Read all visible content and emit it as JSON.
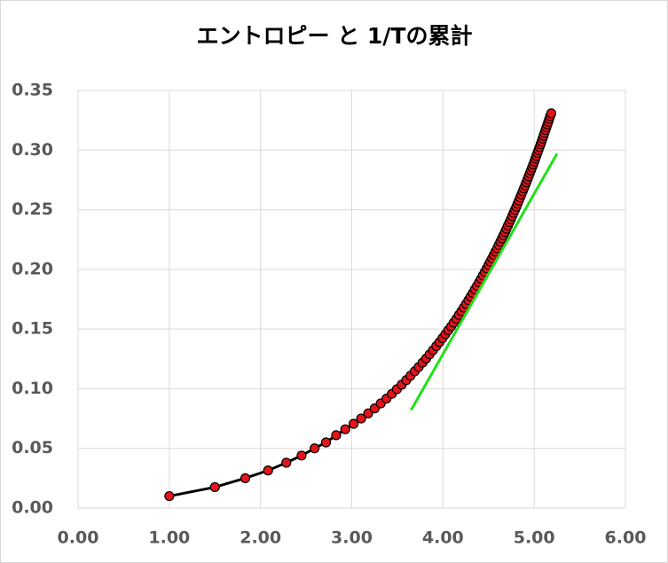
{
  "chart_data": {
    "type": "scatter",
    "title": "エントロピー と 1/Tの累計",
    "xlim": [
      0,
      6
    ],
    "xticks": [
      {
        "value": 0,
        "label": "0.00"
      },
      {
        "value": 1,
        "label": "1.00"
      },
      {
        "value": 2,
        "label": "2.00"
      },
      {
        "value": 3,
        "label": "3.00"
      },
      {
        "value": 4,
        "label": "4.00"
      },
      {
        "value": 5,
        "label": "5.00"
      },
      {
        "value": 6,
        "label": "6.00"
      }
    ],
    "ylim": [
      0,
      0.35
    ],
    "yticks": [
      {
        "value": 0,
        "label": "0.00"
      },
      {
        "value": 0.05,
        "label": "0.05"
      },
      {
        "value": 0.1,
        "label": "0.10"
      },
      {
        "value": 0.15,
        "label": "0.15"
      },
      {
        "value": 0.2,
        "label": "0.20"
      },
      {
        "value": 0.25,
        "label": "0.25"
      },
      {
        "value": 0.3,
        "label": "0.30"
      },
      {
        "value": 0.35,
        "label": "0.35"
      }
    ],
    "grid": true,
    "series": [
      {
        "color": "#000000",
        "marker_color": "#e3141b",
        "x": [
          1.0,
          1.5,
          1.833,
          2.083,
          2.283,
          2.45,
          2.593,
          2.718,
          2.829,
          2.929,
          3.02,
          3.103,
          3.18,
          3.252,
          3.318,
          3.381,
          3.44,
          3.495,
          3.548,
          3.598,
          3.645,
          3.691,
          3.734,
          3.776,
          3.816,
          3.854,
          3.891,
          3.927,
          3.962,
          3.995,
          4.027,
          4.058,
          4.089,
          4.118,
          4.147,
          4.175,
          4.202,
          4.228,
          4.254,
          4.279,
          4.303,
          4.327,
          4.35,
          4.373,
          4.395,
          4.417,
          4.438,
          4.459,
          4.479,
          4.499,
          4.519,
          4.538,
          4.557,
          4.575,
          4.594,
          4.611,
          4.629,
          4.646,
          4.663,
          4.68,
          4.696,
          4.712,
          4.728,
          4.744,
          4.759,
          4.774,
          4.789,
          4.804,
          4.818,
          4.832,
          4.846,
          4.86,
          4.874,
          4.887,
          4.901,
          4.914,
          4.927,
          4.939,
          4.952,
          4.964,
          4.977,
          4.989,
          5.001,
          5.013,
          5.024,
          5.036,
          5.047,
          5.059,
          5.07,
          5.081,
          5.092,
          5.103,
          5.113,
          5.124,
          5.134,
          5.145,
          5.155,
          5.165,
          5.175,
          5.187
        ],
        "values": [
          0.01,
          0.0175,
          0.025,
          0.0315,
          0.038,
          0.044,
          0.05,
          0.055,
          0.061,
          0.066,
          0.0706,
          0.075,
          0.0793,
          0.0835,
          0.0877,
          0.0917,
          0.0957,
          0.0996,
          0.1034,
          0.1072,
          0.1109,
          0.1146,
          0.1182,
          0.1218,
          0.1253,
          0.1288,
          0.1323,
          0.1357,
          0.139,
          0.1424,
          0.1457,
          0.149,
          0.1522,
          0.1554,
          0.1586,
          0.1618,
          0.1649,
          0.168,
          0.1711,
          0.1742,
          0.1772,
          0.1802,
          0.1832,
          0.1862,
          0.1892,
          0.1921,
          0.195,
          0.1979,
          0.2008,
          0.2036,
          0.2065,
          0.2093,
          0.2121,
          0.2149,
          0.2177,
          0.2204,
          0.2232,
          0.2259,
          0.2286,
          0.2313,
          0.234,
          0.2367,
          0.2394,
          0.242,
          0.2447,
          0.2473,
          0.2499,
          0.2525,
          0.2551,
          0.2577,
          0.2603,
          0.2628,
          0.2654,
          0.2679,
          0.2705,
          0.273,
          0.2755,
          0.278,
          0.2805,
          0.2829,
          0.2854,
          0.2879,
          0.2903,
          0.2928,
          0.2952,
          0.2976,
          0.3,
          0.3025,
          0.3049,
          0.3072,
          0.3097,
          0.312,
          0.3144,
          0.3168,
          0.3191,
          0.3215,
          0.3238,
          0.3261,
          0.3284,
          0.3308
        ]
      },
      {
        "color": "#22e01a",
        "x": [
          3.65,
          5.25
        ],
        "values": [
          0.082,
          0.297
        ]
      }
    ]
  }
}
